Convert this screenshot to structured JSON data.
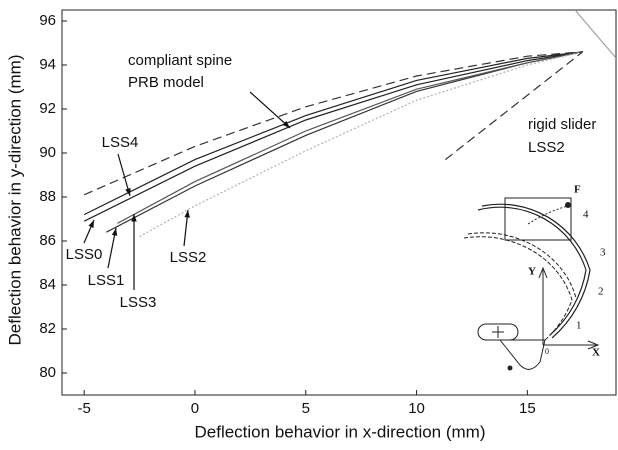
{
  "chart_data": {
    "type": "line",
    "xlabel": "Deflection behavior in x-direction (mm)",
    "ylabel": "Deflection behavior in y-direction (mm)",
    "xlim": [
      -6,
      19
    ],
    "ylim": [
      79,
      96.5
    ],
    "xticks": [
      -5,
      0,
      5,
      10,
      15
    ],
    "yticks": [
      80,
      82,
      84,
      86,
      88,
      90,
      92,
      94,
      96
    ],
    "series": [
      {
        "name": "LSS4",
        "color": "#222222",
        "dash": "solid",
        "x": [
          -5,
          0,
          5,
          10,
          15,
          17.5
        ],
        "values": [
          87.2,
          89.7,
          91.7,
          93.3,
          94.3,
          94.6
        ]
      },
      {
        "name": "LSS0",
        "color": "#222222",
        "dash": "solid",
        "x": [
          -5,
          0,
          5,
          10,
          15,
          17.5
        ],
        "values": [
          86.9,
          89.4,
          91.5,
          93.1,
          94.2,
          94.6
        ]
      },
      {
        "name": "LSS1",
        "color": "#333333",
        "dash": "solid",
        "x": [
          -4,
          0,
          5,
          10,
          15,
          17.5
        ],
        "values": [
          86.4,
          88.5,
          90.8,
          92.8,
          94.1,
          94.6
        ]
      },
      {
        "name": "LSS3",
        "color": "#555555",
        "dash": "solid",
        "x": [
          -3.5,
          0,
          5,
          10,
          15,
          17.5
        ],
        "values": [
          86.8,
          88.7,
          91.0,
          92.9,
          94.1,
          94.6
        ]
      },
      {
        "name": "LSS2",
        "color": "#b0b0b0",
        "dash": "dotted",
        "x": [
          -2.5,
          0,
          5,
          10,
          15,
          17.5
        ],
        "values": [
          86.2,
          87.6,
          90.1,
          92.4,
          94.0,
          94.6
        ]
      },
      {
        "color": "#333333",
        "dash": "dashed",
        "x": [
          -5,
          0,
          5,
          10,
          15,
          17.5
        ],
        "values": [
          88.1,
          90.3,
          92.1,
          93.5,
          94.4,
          94.6
        ]
      },
      {
        "color": "#333333",
        "dash": "dashed",
        "x": [
          11.3,
          17.5
        ],
        "values": [
          89.7,
          94.6
        ]
      }
    ],
    "annotations": [
      "compliant spine",
      "PRB model",
      "rigid slider",
      "LSS2"
    ],
    "inset": {
      "labels": [
        "F",
        "X",
        "Y",
        "0",
        "1",
        "2",
        "3",
        "4"
      ]
    }
  }
}
